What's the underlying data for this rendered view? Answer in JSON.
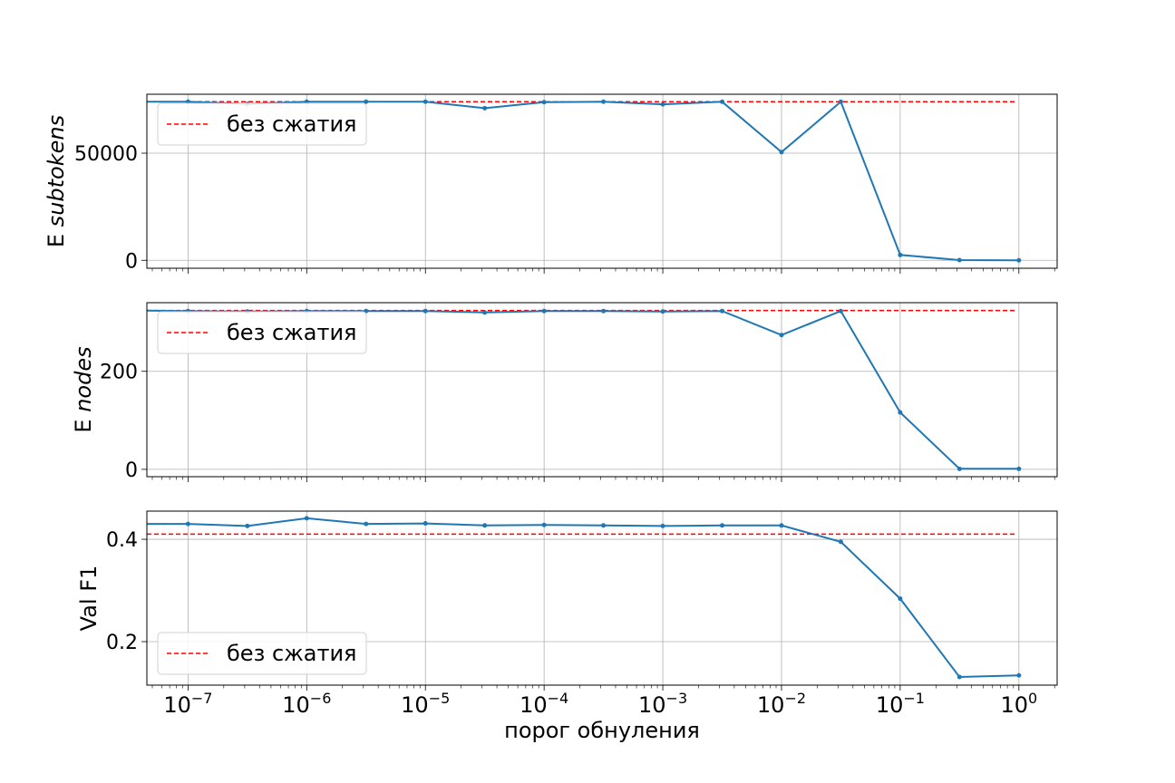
{
  "figure": {
    "xlabel": "порог обнуления",
    "x_tick_labels": [
      {
        "base": "10",
        "exp": "−7",
        "value": 1e-07
      },
      {
        "base": "10",
        "exp": "−6",
        "value": 1e-06
      },
      {
        "base": "10",
        "exp": "−5",
        "value": 1e-05
      },
      {
        "base": "10",
        "exp": "−4",
        "value": 0.0001
      },
      {
        "base": "10",
        "exp": "−3",
        "value": 0.001
      },
      {
        "base": "10",
        "exp": "−2",
        "value": 0.01
      },
      {
        "base": "10",
        "exp": "−1",
        "value": 0.1
      },
      {
        "base": "10",
        "exp": "0",
        "value": 1
      }
    ]
  },
  "colors": {
    "series": "#1f77b4",
    "baseline": "#ff0000",
    "grid": "#b0b0b0",
    "axes": "#000000"
  },
  "chart_data": [
    {
      "type": "line",
      "xscale": "log",
      "ylabel_prefix": "E ",
      "ylabel_italic": "subtokens",
      "xlim": [
        4.5e-08,
        2.1
      ],
      "ylim": [
        -3700,
        77500
      ],
      "yticks": [
        0,
        50000
      ],
      "grid": true,
      "legend": {
        "label": "без сжатия",
        "placement": "upper-left"
      },
      "baseline": 74000,
      "x": [
        4.5e-08,
        1e-07,
        3.16e-07,
        1e-06,
        3.16e-06,
        1e-05,
        3.16e-05,
        0.0001,
        0.000316,
        0.001,
        0.00316,
        0.01,
        0.0316,
        0.1,
        0.316,
        1
      ],
      "y": [
        74000,
        74000,
        73000,
        74000,
        74000,
        74000,
        71000,
        73800,
        74000,
        72800,
        74000,
        50500,
        74000,
        2500,
        100,
        0
      ]
    },
    {
      "type": "line",
      "xscale": "log",
      "ylabel_prefix": "E ",
      "ylabel_italic": "nodes",
      "xlim": [
        4.5e-08,
        2.1
      ],
      "ylim": [
        -15,
        340
      ],
      "yticks": [
        0,
        200
      ],
      "grid": true,
      "legend": {
        "label": "без сжатия",
        "placement": "upper-left"
      },
      "baseline": 324,
      "x": [
        4.5e-08,
        1e-07,
        3.16e-07,
        1e-06,
        3.16e-06,
        1e-05,
        3.16e-05,
        0.0001,
        0.000316,
        0.001,
        0.00316,
        0.01,
        0.0316,
        0.1,
        0.316,
        1
      ],
      "y": [
        324,
        323,
        322,
        323,
        323,
        323,
        320,
        323,
        323,
        322,
        323,
        274,
        323,
        116,
        1,
        1
      ],
      "tick_labels": [
        "0",
        "200"
      ]
    },
    {
      "type": "line",
      "xscale": "log",
      "ylabel_prefix": "Val F1",
      "ylabel_italic": "",
      "xlim": [
        4.5e-08,
        2.1
      ],
      "ylim": [
        0.115,
        0.455
      ],
      "yticks": [
        0.2,
        0.4
      ],
      "grid": true,
      "legend": {
        "label": "без сжатия",
        "placement": "lower-left"
      },
      "baseline": 0.41,
      "x": [
        4.5e-08,
        1e-07,
        3.16e-07,
        1e-06,
        3.16e-06,
        1e-05,
        3.16e-05,
        0.0001,
        0.000316,
        0.001,
        0.00316,
        0.01,
        0.0316,
        0.1,
        0.316,
        1
      ],
      "y": [
        0.43,
        0.43,
        0.426,
        0.441,
        0.43,
        0.431,
        0.427,
        0.428,
        0.427,
        0.426,
        0.427,
        0.427,
        0.395,
        0.284,
        0.131,
        0.134
      ],
      "tick_labels": [
        "0.2",
        "0.4"
      ]
    }
  ]
}
